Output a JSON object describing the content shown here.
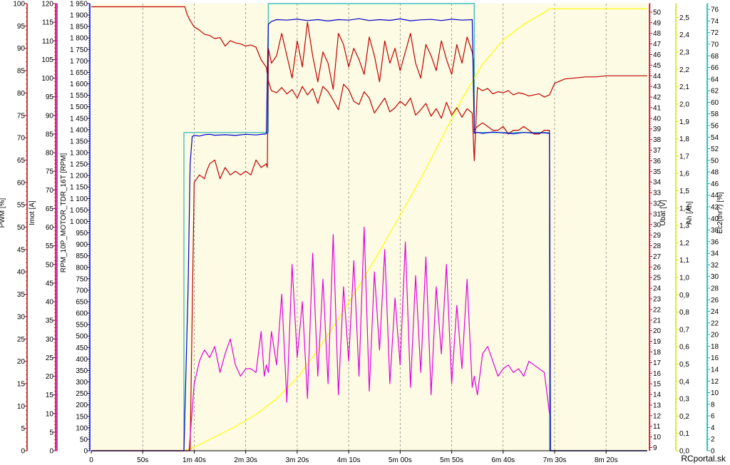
{
  "chart_data": {
    "type": "line",
    "title": "",
    "watermark": "RCportal.sk",
    "grid": true,
    "plot_background": "#fdfbe3",
    "x": {
      "unit": "s",
      "range": [
        0,
        540
      ],
      "tick_labels": [
        "0",
        "50s",
        "1m 40s",
        "2m 30s",
        "3m 20s",
        "4m 10s",
        "5m 00s",
        "5m 50s",
        "6m 40s",
        "7m 30s",
        "8m 20s"
      ],
      "tick_values": [
        0,
        50,
        100,
        150,
        200,
        250,
        300,
        350,
        400,
        450,
        500
      ]
    },
    "axes": [
      {
        "id": "pwm",
        "label": "PWM [%]",
        "color": "#c00000",
        "side": "left",
        "range": [
          0,
          100
        ],
        "major": 5,
        "minor": 1
      },
      {
        "id": "imot",
        "label": "Imot [A]",
        "color": "#c00000",
        "side": "left",
        "range": [
          0,
          120
        ],
        "major": 5,
        "minor": 1
      },
      {
        "id": "ec",
        "label": "Ec2(thr?) [%]",
        "color": "#c000c0",
        "side": "left",
        "range": [
          0,
          120
        ],
        "major": 5,
        "minor": 1,
        "tick_labels_hidden": true
      },
      {
        "id": "rpm",
        "label": "RPM_10P_MOTOR_TDR_16T [RPM]",
        "color": "#0000c0",
        "side": "left",
        "range": [
          0,
          1950
        ],
        "major": 50,
        "minor": 10
      },
      {
        "id": "ubat",
        "label": "Ubat [V]",
        "color": "#c00000",
        "side": "right",
        "range": [
          8.7,
          50.8
        ],
        "major": 1,
        "minor": 0.2
      },
      {
        "id": "ah",
        "label": "Ah [Ah]",
        "color": "#e0e000",
        "side": "right",
        "range": [
          0,
          2.58
        ],
        "major": 0.1,
        "minor": 0.02
      },
      {
        "id": "thr",
        "label": "Ec2(thr?) [%]",
        "color": "#00b0b0",
        "side": "right",
        "range": [
          0,
          77
        ],
        "major": 2,
        "minor": 0.5
      }
    ],
    "series": [
      {
        "axis": "thr",
        "color": "#40c0c0",
        "kind": "step",
        "x": [
          0,
          90,
          90,
          172,
          172,
          372,
          372,
          445,
          445,
          540
        ],
        "y": [
          0,
          0,
          54.8,
          54.8,
          77,
          77,
          54.8,
          54.8,
          0,
          0
        ]
      },
      {
        "axis": "ah",
        "color": "#ffff00",
        "kind": "line",
        "x": [
          0,
          90,
          100,
          120,
          140,
          160,
          180,
          200,
          220,
          240,
          260,
          280,
          300,
          320,
          340,
          360,
          380,
          400,
          420,
          440,
          445,
          540
        ],
        "y": [
          0,
          0,
          0.02,
          0.08,
          0.14,
          0.21,
          0.3,
          0.42,
          0.58,
          0.76,
          0.95,
          1.15,
          1.36,
          1.57,
          1.8,
          2.03,
          2.23,
          2.37,
          2.46,
          2.53,
          2.55,
          2.55
        ]
      },
      {
        "axis": "ubat",
        "color": "#c00000",
        "kind": "line",
        "x": [
          0,
          91,
          93,
          96,
          100,
          105,
          110,
          115,
          120,
          125,
          130,
          135,
          140,
          145,
          150,
          155,
          160,
          165,
          170,
          172,
          175,
          180,
          185,
          190,
          195,
          200,
          205,
          210,
          215,
          220,
          225,
          230,
          235,
          240,
          245,
          250,
          255,
          260,
          265,
          270,
          275,
          280,
          285,
          290,
          295,
          300,
          305,
          310,
          315,
          320,
          325,
          330,
          335,
          340,
          345,
          350,
          355,
          360,
          365,
          370,
          372,
          375,
          380,
          385,
          390,
          395,
          400,
          405,
          410,
          415,
          420,
          425,
          430,
          435,
          440,
          445,
          450,
          455,
          460,
          470,
          480,
          490,
          500,
          510,
          520,
          530,
          540
        ],
        "y": [
          50.5,
          50.5,
          49.8,
          49.2,
          48.6,
          48.3,
          47.9,
          47.8,
          47.5,
          47.6,
          46.8,
          47.3,
          47.1,
          47.0,
          46.8,
          46.9,
          46.7,
          45.5,
          44.8,
          43.5,
          42.6,
          42.4,
          42.9,
          42.3,
          42.7,
          41.9,
          43.0,
          42.2,
          42.8,
          41.4,
          43.0,
          42.5,
          41.7,
          40.8,
          43.2,
          42.7,
          41.6,
          41.3,
          42.5,
          41.9,
          40.5,
          41.2,
          41.9,
          40.6,
          41.0,
          41.6,
          41.2,
          41.9,
          40.3,
          40.8,
          41.4,
          40.2,
          40.9,
          40.0,
          41.5,
          40.3,
          41.0,
          40.1,
          40.9,
          40.5,
          36.0,
          42.9,
          42.6,
          42.8,
          42.3,
          42.5,
          42.4,
          42.6,
          42.2,
          42.4,
          42.3,
          42.1,
          42.2,
          42.3,
          42.0,
          42.2,
          43.3,
          43.5,
          43.7,
          43.8,
          43.9,
          43.9,
          44.0,
          44.0,
          44.0,
          44.0,
          44.0
        ]
      },
      {
        "axis": "imot",
        "color": "#c00000",
        "kind": "line",
        "x": [
          0,
          96,
          100,
          105,
          110,
          112,
          115,
          120,
          125,
          130,
          135,
          140,
          145,
          150,
          155,
          160,
          165,
          170,
          171,
          172,
          175,
          180,
          185,
          190,
          195,
          200,
          205,
          210,
          215,
          220,
          225,
          230,
          235,
          240,
          245,
          250,
          255,
          260,
          265,
          270,
          275,
          280,
          285,
          290,
          295,
          300,
          305,
          310,
          315,
          320,
          325,
          330,
          335,
          340,
          345,
          350,
          355,
          360,
          365,
          370,
          371,
          372,
          375,
          380,
          385,
          390,
          395,
          400,
          405,
          410,
          415,
          420,
          425,
          430,
          435,
          440,
          445,
          446,
          540
        ],
        "y": [
          0,
          0,
          72,
          74,
          73,
          75,
          77,
          78,
          73,
          76,
          74,
          75,
          74,
          75,
          74,
          78,
          76,
          77,
          76,
          108,
          104,
          106,
          112,
          106,
          100,
          110,
          103,
          115,
          106,
          99,
          107,
          104,
          97,
          112,
          109,
          103,
          108,
          105,
          101,
          111,
          106,
          99,
          110,
          104,
          108,
          102,
          107,
          112,
          104,
          100,
          109,
          106,
          102,
          110,
          105,
          101,
          109,
          104,
          111,
          107,
          105,
          86,
          87,
          88,
          87,
          86,
          86,
          87,
          85,
          86,
          86,
          87,
          86,
          85,
          85,
          86,
          86,
          0,
          0
        ]
      },
      {
        "axis": "rpm",
        "color": "#0000c8",
        "kind": "line",
        "x": [
          0,
          90,
          94,
          96,
          98,
          100,
          105,
          110,
          115,
          120,
          130,
          140,
          150,
          160,
          170,
          172,
          175,
          180,
          190,
          200,
          210,
          220,
          230,
          240,
          250,
          260,
          270,
          280,
          290,
          300,
          310,
          320,
          330,
          340,
          350,
          360,
          370,
          372,
          375,
          380,
          390,
          400,
          410,
          420,
          430,
          440,
          445,
          446,
          540
        ],
        "y": [
          0,
          0,
          700,
          1250,
          1370,
          1375,
          1372,
          1378,
          1380,
          1376,
          1378,
          1375,
          1380,
          1377,
          1382,
          1860,
          1872,
          1880,
          1878,
          1882,
          1876,
          1880,
          1874,
          1880,
          1878,
          1884,
          1876,
          1880,
          1877,
          1883,
          1875,
          1879,
          1881,
          1876,
          1882,
          1878,
          1880,
          1385,
          1388,
          1384,
          1390,
          1386,
          1382,
          1388,
          1385,
          1386,
          1384,
          0,
          0
        ]
      },
      {
        "axis": "ec",
        "color": "#e000e0",
        "kind": "line",
        "x": [
          0,
          95,
          100,
          105,
          108,
          110,
          115,
          120,
          125,
          130,
          135,
          140,
          145,
          150,
          155,
          160,
          165,
          168,
          170,
          172,
          175,
          180,
          185,
          190,
          195,
          200,
          205,
          210,
          215,
          220,
          225,
          230,
          235,
          240,
          245,
          250,
          255,
          260,
          265,
          270,
          275,
          280,
          285,
          290,
          295,
          300,
          305,
          310,
          315,
          320,
          325,
          330,
          335,
          340,
          345,
          350,
          355,
          360,
          365,
          370,
          372,
          375,
          380,
          385,
          390,
          395,
          400,
          405,
          410,
          415,
          420,
          425,
          430,
          435,
          440,
          445
        ],
        "y": [
          0,
          0,
          18,
          24,
          26,
          27,
          25,
          28,
          21,
          26,
          30,
          23,
          20,
          22,
          22,
          21,
          32,
          20,
          23,
          21,
          32,
          23,
          42,
          13,
          50,
          25,
          40,
          14,
          53,
          20,
          46,
          18,
          58,
          15,
          44,
          24,
          51,
          20,
          60,
          16,
          48,
          27,
          54,
          18,
          41,
          23,
          56,
          17,
          47,
          21,
          52,
          15,
          44,
          26,
          50,
          18,
          39,
          22,
          46,
          17,
          20,
          15,
          26,
          28,
          24,
          20,
          22,
          23,
          21,
          22,
          20,
          24,
          23,
          22,
          21,
          10
        ]
      }
    ]
  }
}
